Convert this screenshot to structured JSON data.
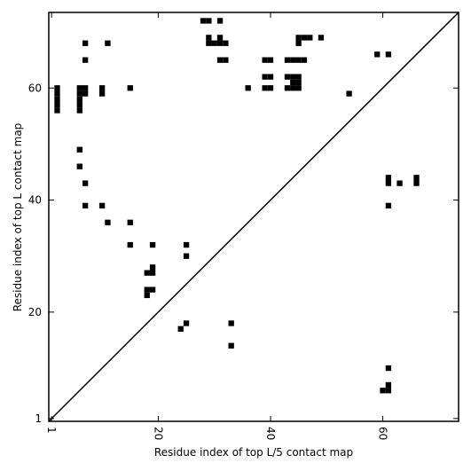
{
  "chart_data": {
    "type": "heatmap",
    "xlabel": "Residue index of top L/5 contact map",
    "ylabel": "Residue index of top L contact map",
    "xlim": [
      0.5,
      73.5
    ],
    "ylim": [
      0.5,
      73.5
    ],
    "x_ticks": [
      1,
      20,
      40,
      60
    ],
    "y_ticks": [
      1,
      20,
      40,
      60
    ],
    "diagonal": true,
    "grid": false,
    "cell_color": "#000000",
    "cells_upper": [
      [
        28,
        72
      ],
      [
        29,
        72
      ],
      [
        31,
        72
      ],
      [
        7,
        68
      ],
      [
        11,
        68
      ],
      [
        29,
        68
      ],
      [
        30,
        68
      ],
      [
        31,
        68
      ],
      [
        32,
        68
      ],
      [
        29,
        69
      ],
      [
        31,
        69
      ],
      [
        45,
        68
      ],
      [
        45,
        69
      ],
      [
        46,
        69
      ],
      [
        47,
        69
      ],
      [
        49,
        69
      ],
      [
        7,
        65
      ],
      [
        31,
        65
      ],
      [
        32,
        65
      ],
      [
        39,
        65
      ],
      [
        40,
        65
      ],
      [
        43,
        65
      ],
      [
        44,
        65
      ],
      [
        45,
        65
      ],
      [
        46,
        65
      ],
      [
        59,
        66
      ],
      [
        61,
        66
      ],
      [
        39,
        62
      ],
      [
        40,
        62
      ],
      [
        43,
        62
      ],
      [
        44,
        62
      ],
      [
        45,
        62
      ],
      [
        44,
        61
      ],
      [
        45,
        61
      ],
      [
        39,
        60
      ],
      [
        40,
        60
      ],
      [
        43,
        60
      ],
      [
        44,
        60
      ],
      [
        45,
        60
      ],
      [
        36,
        60
      ],
      [
        15,
        60
      ],
      [
        2,
        60
      ],
      [
        2,
        59
      ],
      [
        2,
        58
      ],
      [
        2,
        57
      ],
      [
        2,
        56
      ],
      [
        6,
        60
      ],
      [
        7,
        60
      ],
      [
        6,
        59
      ],
      [
        7,
        59
      ],
      [
        6,
        58
      ],
      [
        6,
        57
      ],
      [
        6,
        56
      ],
      [
        10,
        60
      ],
      [
        10,
        59
      ],
      [
        54,
        59
      ]
    ],
    "cells_lower": [
      [
        6,
        49
      ],
      [
        6,
        46
      ],
      [
        7,
        43
      ],
      [
        7,
        39
      ],
      [
        10,
        39
      ],
      [
        11,
        36
      ],
      [
        15,
        36
      ],
      [
        15,
        32
      ],
      [
        19,
        32
      ],
      [
        25,
        32
      ],
      [
        25,
        30
      ],
      [
        18,
        27
      ],
      [
        19,
        27
      ],
      [
        19,
        28
      ],
      [
        18,
        24
      ],
      [
        19,
        24
      ],
      [
        18,
        23
      ],
      [
        25,
        18
      ],
      [
        24,
        17
      ],
      [
        33,
        18
      ],
      [
        33,
        14
      ],
      [
        61,
        44
      ],
      [
        61,
        43
      ],
      [
        63,
        43
      ],
      [
        66,
        44
      ],
      [
        66,
        43
      ],
      [
        61,
        39
      ],
      [
        61,
        10
      ],
      [
        61,
        7
      ],
      [
        61,
        6
      ],
      [
        60,
        6
      ]
    ]
  }
}
